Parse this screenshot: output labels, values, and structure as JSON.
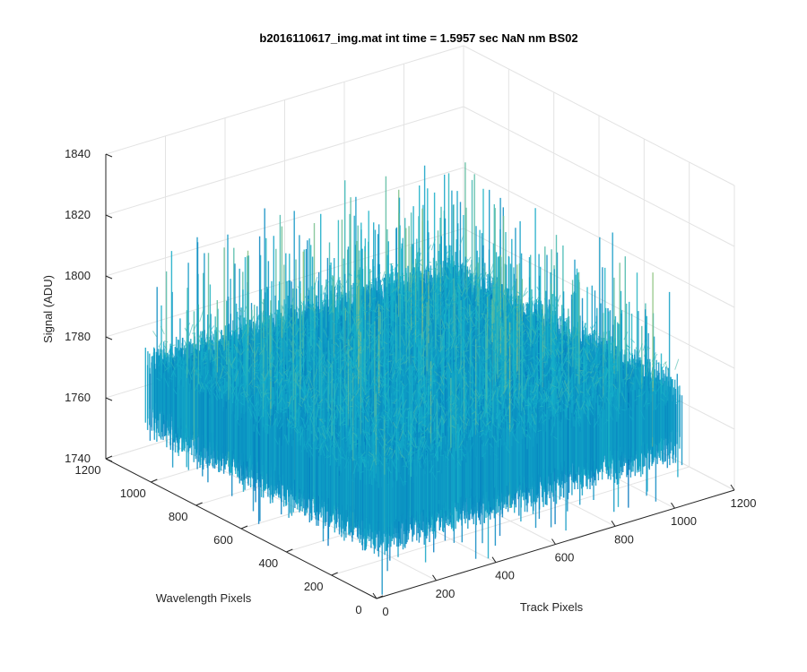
{
  "chart_data": {
    "type": "surface",
    "title": "b2016110617_img.mat int time = 1.5957 sec  NaN nm BS02",
    "xlabel": "Track Pixels",
    "ylabel": "Wavelength Pixels",
    "zlabel": "Signal (ADU)",
    "xlim": [
      0,
      1200
    ],
    "ylim": [
      0,
      1200
    ],
    "zlim": [
      1740,
      1840
    ],
    "x_ticks": [
      "0",
      "200",
      "400",
      "600",
      "800",
      "1000",
      "1200"
    ],
    "y_ticks": [
      "0",
      "200",
      "400",
      "600",
      "800",
      "1000",
      "1200"
    ],
    "z_ticks": [
      "1740",
      "1760",
      "1780",
      "1800",
      "1820",
      "1840"
    ],
    "grid": true,
    "surface": {
      "x_range": [
        0,
        1024
      ],
      "y_range": [
        0,
        1024
      ],
      "mean_signal": 1771,
      "noise_min": 1745,
      "noise_max": 1828,
      "colormap_low": "#0072bd",
      "colormap_mid": "#17b3c9",
      "colormap_high": "#c9c95a"
    }
  }
}
